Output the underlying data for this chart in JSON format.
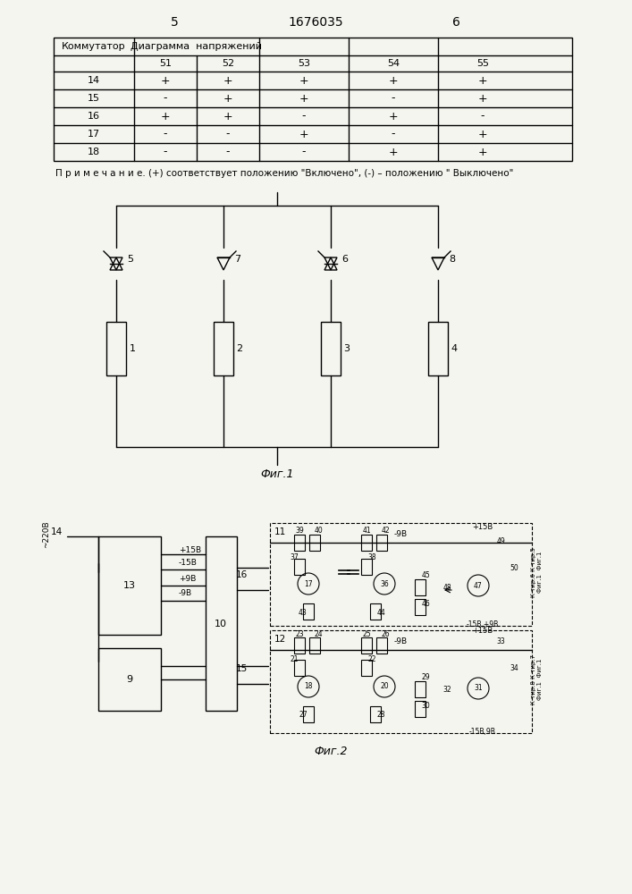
{
  "bg_color": "#f5f5f0",
  "page_left": "5",
  "page_center": "1676035",
  "page_right": "6",
  "table": {
    "header1": "Коммутатор",
    "header2": "Диаграмма  напряжений",
    "cols": [
      "51",
      "52",
      "53",
      "54",
      "55"
    ],
    "rows": [
      {
        "id": "14",
        "vals": [
          "+",
          "+",
          "+",
          "+",
          "+"
        ]
      },
      {
        "id": "15",
        "vals": [
          "-",
          "+",
          "+",
          "-",
          "+"
        ]
      },
      {
        "id": "16",
        "vals": [
          "+",
          "+",
          "-",
          "+",
          "-"
        ]
      },
      {
        "id": "17",
        "vals": [
          "-",
          "-",
          "+",
          "-",
          "+"
        ]
      },
      {
        "id": "18",
        "vals": [
          "-",
          "-",
          "-",
          "+",
          "+"
        ]
      }
    ]
  },
  "note": "П р и м е ч а н и е. (+) соответствует положению \"Включено\", (-) – положению \" Выключено\"",
  "fig1_label": "Фиг.1",
  "fig2_label": "Фиг.2"
}
